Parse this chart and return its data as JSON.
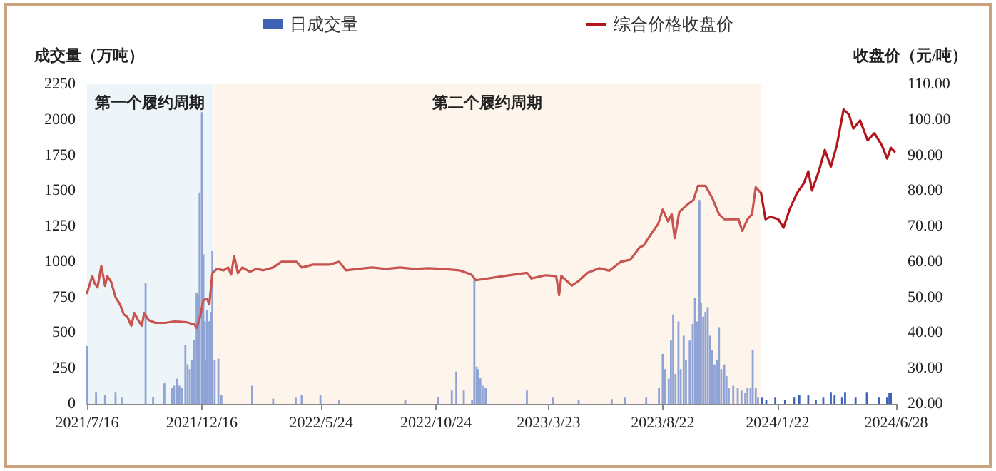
{
  "chart_data": {
    "type": "bar",
    "ylabel": "成交量（万吨）",
    "y2label": "收盘价（元/吨）",
    "legend": "top",
    "xlim": [
      "2021-07-16",
      "2024-06-28"
    ],
    "xticks": [
      {
        "value": "2021-07-16",
        "label": "2021/7/16"
      },
      {
        "value": "2021-12-16",
        "label": "2021/12/16"
      },
      {
        "value": "2022-05-24",
        "label": "2022/5/24"
      },
      {
        "value": "2022-10-24",
        "label": "2022/10/24"
      },
      {
        "value": "2023-03-23",
        "label": "2023/3/23"
      },
      {
        "value": "2023-08-22",
        "label": "2023/8/22"
      },
      {
        "value": "2024-01-22",
        "label": "2024/1/22"
      },
      {
        "value": "2024-06-28",
        "label": "2024/6/28"
      }
    ],
    "ylim": [
      0,
      2250
    ],
    "yticks": [
      0,
      250,
      500,
      750,
      1000,
      1250,
      1500,
      1750,
      2000,
      2250
    ],
    "y2lim": [
      20,
      110
    ],
    "y2ticks": [
      {
        "value": 20,
        "label": "20.00"
      },
      {
        "value": 30,
        "label": "30.00"
      },
      {
        "value": 40,
        "label": "40.00"
      },
      {
        "value": 50,
        "label": "50.00"
      },
      {
        "value": 60,
        "label": "60.00"
      },
      {
        "value": 70,
        "label": "70.00"
      },
      {
        "value": 80,
        "label": "80.00"
      },
      {
        "value": 90,
        "label": "90.00"
      },
      {
        "value": 100,
        "label": "100.00"
      },
      {
        "value": 110,
        "label": "110.00"
      }
    ],
    "bands": [
      {
        "axis": "x",
        "from": "2021-07-16",
        "to": "2021-12-31",
        "label": "第一个履约周期",
        "color": "#edf5f8"
      },
      {
        "axis": "x",
        "from": "2022-01-01",
        "to": "2023-12-31",
        "label": "第二个履约周期",
        "color": "#fdf4ec"
      }
    ],
    "series": [
      {
        "axis": "y",
        "color": "#8fa3d4",
        "x": [
          "2021-07-16",
          "2021-07-28",
          "2021-08-09",
          "2021-08-23",
          "2021-08-31",
          "2021-10-02",
          "2021-10-12",
          "2021-10-27",
          "2021-11-06",
          "2021-11-09",
          "2021-11-13",
          "2021-11-16",
          "2021-11-19",
          "2021-11-24",
          "2021-11-27",
          "2021-11-30",
          "2021-12-03",
          "2021-12-06",
          "2021-12-09",
          "2021-12-11",
          "2021-12-13",
          "2021-12-16",
          "2021-12-18",
          "2021-12-20",
          "2021-12-21",
          "2021-12-23",
          "2021-12-26",
          "2021-12-28",
          "2021-12-30",
          "2022-01-02",
          "2022-01-07",
          "2022-01-11",
          "2022-02-21",
          "2022-03-21",
          "2022-04-20",
          "2022-04-28",
          "2022-05-23",
          "2022-06-17",
          "2022-09-13",
          "2022-10-27",
          "2022-11-14",
          "2022-11-20",
          "2022-11-30",
          "2022-12-11",
          "2022-12-14",
          "2022-12-17",
          "2022-12-19",
          "2022-12-22",
          "2022-12-25",
          "2022-12-29",
          "2023-02-22",
          "2023-03-29",
          "2023-05-02",
          "2023-06-15",
          "2023-07-03",
          "2023-07-31",
          "2023-08-17",
          "2023-08-22",
          "2023-08-25",
          "2023-08-30",
          "2023-09-02",
          "2023-09-05",
          "2023-09-08",
          "2023-09-12",
          "2023-09-15",
          "2023-09-19",
          "2023-09-22",
          "2023-09-27",
          "2023-10-01",
          "2023-10-04",
          "2023-10-07",
          "2023-10-10",
          "2023-10-12",
          "2023-10-15",
          "2023-10-18",
          "2023-10-21",
          "2023-10-24",
          "2023-10-27",
          "2023-10-30",
          "2023-11-02",
          "2023-11-05",
          "2023-11-08",
          "2023-11-12",
          "2023-11-15",
          "2023-11-18",
          "2023-11-24",
          "2023-11-30",
          "2023-12-05",
          "2023-12-10",
          "2023-12-13",
          "2023-12-17",
          "2023-12-20",
          "2023-12-24",
          "2023-12-27"
        ],
        "values": [
          407,
          84,
          60,
          84,
          44,
          850,
          50,
          145,
          111,
          128,
          178,
          128,
          111,
          413,
          279,
          245,
          312,
          447,
          783,
          766,
          1488,
          2053,
          1052,
          581,
          312,
          659,
          581,
          648,
          1075,
          312,
          318,
          60,
          128,
          37,
          44,
          60,
          60,
          27,
          27,
          50,
          94,
          228,
          94,
          27,
          884,
          262,
          245,
          180,
          128,
          111,
          94,
          44,
          27,
          34,
          44,
          44,
          111,
          352,
          245,
          178,
          446,
          630,
          211,
          580,
          245,
          480,
          312,
          446,
          563,
          748,
          580,
          1435,
          714,
          614,
          647,
          681,
          480,
          379,
          278,
          312,
          540,
          245,
          278,
          195,
          111,
          127,
          111,
          94,
          77,
          111,
          111,
          379,
          111,
          44
        ]
      },
      {
        "axis": "y",
        "name": "日成交量",
        "color": "#3e64b5",
        "x": [
          "2024-01-01",
          "2024-01-07",
          "2024-01-19",
          "2024-02-01",
          "2024-02-13",
          "2024-02-20",
          "2024-03-03",
          "2024-03-13",
          "2024-03-23",
          "2024-04-02",
          "2024-04-07",
          "2024-04-17",
          "2024-04-21",
          "2024-05-05",
          "2024-05-20",
          "2024-06-05",
          "2024-06-16",
          "2024-06-19",
          "2024-06-21"
        ],
        "values": [
          44,
          27,
          44,
          27,
          44,
          60,
          60,
          27,
          44,
          84,
          60,
          44,
          84,
          44,
          84,
          44,
          44,
          77,
          77
        ]
      },
      {
        "type": "line",
        "axis": "y2",
        "color": "#c9534f",
        "x": [
          "2021-07-16",
          "2021-07-23",
          "2021-07-26",
          "2021-07-30",
          "2021-08-04",
          "2021-08-09",
          "2021-08-12",
          "2021-08-17",
          "2021-08-23",
          "2021-08-29",
          "2021-09-03",
          "2021-09-08",
          "2021-09-13",
          "2021-09-17",
          "2021-09-22",
          "2021-09-27",
          "2021-09-30",
          "2021-10-06",
          "2021-10-15",
          "2021-10-28",
          "2021-11-09",
          "2021-11-25",
          "2021-12-06",
          "2021-12-09",
          "2021-12-14",
          "2021-12-18",
          "2021-12-23",
          "2021-12-26",
          "2021-12-30",
          "2022-01-05",
          "2022-01-14",
          "2022-01-20",
          "2022-01-24",
          "2022-01-28",
          "2022-02-02",
          "2022-02-08",
          "2022-02-18",
          "2022-02-27",
          "2022-03-08",
          "2022-03-21",
          "2022-04-01",
          "2022-04-21",
          "2022-04-28",
          "2022-05-13",
          "2022-06-04",
          "2022-06-17",
          "2022-06-26",
          "2022-07-12",
          "2022-07-31",
          "2022-08-18",
          "2022-09-06",
          "2022-09-25",
          "2022-10-14",
          "2022-11-02",
          "2022-11-24",
          "2022-12-10",
          "2022-12-16",
          "2022-12-29",
          "2023-01-22",
          "2023-02-22",
          "2023-02-28",
          "2023-03-19",
          "2023-04-02",
          "2023-04-06",
          "2023-04-09",
          "2023-04-23",
          "2023-05-02",
          "2023-05-14",
          "2023-05-30",
          "2023-06-12",
          "2023-06-27",
          "2023-07-10",
          "2023-07-22",
          "2023-07-28",
          "2023-08-07",
          "2023-08-16",
          "2023-08-22",
          "2023-08-29",
          "2023-09-03",
          "2023-09-07",
          "2023-09-13",
          "2023-09-23",
          "2023-10-02",
          "2023-10-08",
          "2023-10-18",
          "2023-10-27",
          "2023-11-05",
          "2023-11-12",
          "2023-11-21",
          "2023-12-01",
          "2023-12-06",
          "2023-12-13",
          "2023-12-19",
          "2023-12-24",
          "2023-12-31"
        ],
        "values": [
          51.2,
          56,
          54,
          52.8,
          58.8,
          53.2,
          56,
          54.4,
          50,
          48,
          45.2,
          44.4,
          42,
          45.6,
          43.6,
          42,
          45.6,
          43.6,
          42.8,
          42.8,
          43.2,
          43,
          42.4,
          41.4,
          44.8,
          49.2,
          49.6,
          48,
          56.8,
          58,
          57.6,
          58.4,
          56.4,
          61.6,
          56.8,
          58.4,
          57.2,
          58,
          57.6,
          58.4,
          60,
          60,
          58.4,
          59.2,
          59.2,
          60,
          57.6,
          58,
          58.4,
          58,
          58.4,
          58,
          58.2,
          58,
          57.6,
          56.4,
          54.8,
          55.2,
          56,
          56.9,
          55.3,
          56.2,
          56,
          50.6,
          56,
          53.3,
          54.6,
          56.9,
          58.2,
          57.5,
          60,
          60.6,
          64,
          64.7,
          68,
          70.7,
          74.7,
          71.4,
          73.4,
          66.7,
          74,
          76,
          77.4,
          81.4,
          81.4,
          78,
          73.4,
          72,
          72,
          72,
          68.7,
          72,
          73.4,
          81,
          79.4
        ]
      },
      {
        "type": "line",
        "axis": "y2",
        "name": "综合价格收盘价",
        "color": "#b3151b",
        "x": [
          "2023-12-31",
          "2024-01-06",
          "2024-01-13",
          "2024-01-23",
          "2024-01-30",
          "2024-02-07",
          "2024-02-17",
          "2024-02-26",
          "2024-03-03",
          "2024-03-08",
          "2024-03-17",
          "2024-03-25",
          "2024-04-02",
          "2024-04-10",
          "2024-04-19",
          "2024-04-26",
          "2024-05-02",
          "2024-05-11",
          "2024-05-21",
          "2024-05-30",
          "2024-06-09",
          "2024-06-16",
          "2024-06-21",
          "2024-06-26"
        ],
        "values": [
          79.4,
          72,
          72.7,
          72,
          69.6,
          74.7,
          79.4,
          82.1,
          85.5,
          80.1,
          85.5,
          91.5,
          86.8,
          92.8,
          102.9,
          101.5,
          97.5,
          99.8,
          94.2,
          96.2,
          92.8,
          89.1,
          92.1,
          91
        ]
      }
    ]
  }
}
